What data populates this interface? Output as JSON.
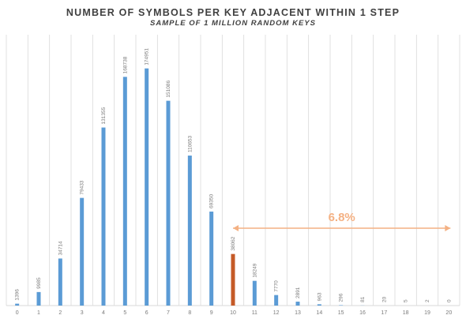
{
  "chart_data": {
    "type": "bar",
    "title": "NUMBER OF SYMBOLS PER KEY ADJACENT WITHIN 1 STEP",
    "subtitle": "SAMPLE OF 1 MILLION RANDOM KEYS",
    "xlabel": "",
    "ylabel": "",
    "categories": [
      "0",
      "1",
      "2",
      "3",
      "4",
      "5",
      "6",
      "7",
      "8",
      "9",
      "10",
      "11",
      "12",
      "13",
      "14",
      "15",
      "16",
      "17",
      "18",
      "19",
      "20"
    ],
    "values": [
      1396,
      9985,
      34714,
      79433,
      131355,
      168738,
      174951,
      151086,
      110653,
      69350,
      38062,
      18249,
      7770,
      2891,
      963,
      296,
      81,
      20,
      5,
      2,
      0
    ],
    "data_labels": [
      "1396",
      "9985",
      "34714",
      "79433",
      "131355",
      "168738",
      "174951",
      "151086",
      "110653",
      "69350",
      "38062",
      "18249",
      "7770",
      "2891",
      "963",
      "296",
      "81",
      "20",
      "5",
      "2",
      "0"
    ],
    "highlight_index": 10,
    "ylim": [
      0,
      180000
    ],
    "grid": "vertical",
    "colors": {
      "bar": "#5b9bd5",
      "highlight": "#c55a28",
      "grid": "#d9d9d9",
      "annotation": "#f4b183"
    },
    "annotation": {
      "text": "6.8%",
      "from_category": "10",
      "to_category": "20",
      "style": "double-headed arrow"
    }
  }
}
